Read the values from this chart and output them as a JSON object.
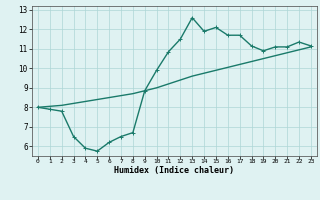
{
  "line1_x": [
    0,
    1,
    2,
    3,
    4,
    5,
    6,
    7,
    8,
    9,
    10,
    11,
    12,
    13,
    14,
    15,
    16,
    17,
    18,
    19,
    20,
    21,
    22,
    23
  ],
  "line1_y": [
    8.0,
    7.9,
    7.8,
    6.5,
    5.9,
    5.75,
    6.2,
    6.5,
    6.7,
    8.85,
    9.9,
    10.85,
    11.5,
    12.6,
    11.9,
    12.1,
    11.7,
    11.7,
    11.15,
    10.9,
    11.1,
    11.1,
    11.35,
    11.15
  ],
  "line2_x": [
    0,
    1,
    2,
    3,
    4,
    5,
    6,
    7,
    8,
    9,
    10,
    11,
    12,
    13,
    14,
    15,
    16,
    17,
    18,
    19,
    20,
    21,
    22,
    23
  ],
  "line2_y": [
    8.0,
    8.05,
    8.1,
    8.2,
    8.3,
    8.4,
    8.5,
    8.6,
    8.7,
    8.85,
    9.0,
    9.2,
    9.4,
    9.6,
    9.75,
    9.9,
    10.05,
    10.2,
    10.35,
    10.5,
    10.65,
    10.8,
    10.95,
    11.1
  ],
  "line_color": "#1a7a6a",
  "bg_color": "#dff2f2",
  "grid_color": "#aed6d6",
  "xlabel": "Humidex (Indice chaleur)",
  "xlim": [
    -0.5,
    23.5
  ],
  "ylim": [
    5.5,
    13.2
  ],
  "xticks": [
    0,
    1,
    2,
    3,
    4,
    5,
    6,
    7,
    8,
    9,
    10,
    11,
    12,
    13,
    14,
    15,
    16,
    17,
    18,
    19,
    20,
    21,
    22,
    23
  ],
  "yticks": [
    6,
    7,
    8,
    9,
    10,
    11,
    12,
    13
  ],
  "marker_size": 2.5,
  "line_width": 1.0
}
